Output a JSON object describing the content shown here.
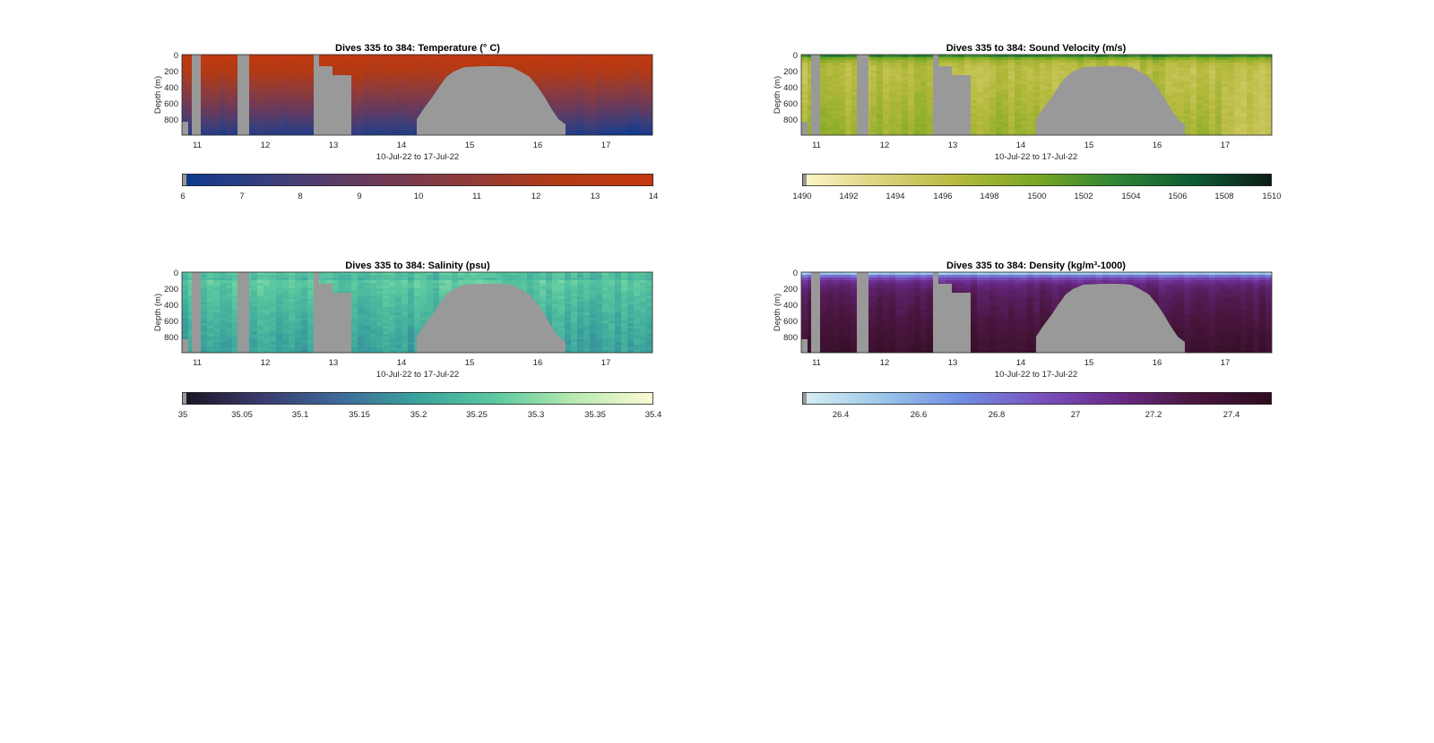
{
  "chart_data": [
    {
      "type": "heatmap",
      "title": "Dives 335 to 384: Temperature (° C)",
      "xlabel": "10-Jul-22 to 17-Jul-22",
      "ylabel": "Depth (m)",
      "x_ticks": [
        "11",
        "12",
        "13",
        "14",
        "15",
        "16",
        "17"
      ],
      "y_ticks": [
        "0",
        "200",
        "400",
        "600",
        "800"
      ],
      "x_range_days": [
        10.8,
        17.7
      ],
      "depth_range_m": [
        0,
        1000
      ],
      "colorbar": {
        "ticks": [
          "6",
          "7",
          "8",
          "9",
          "10",
          "11",
          "12",
          "13",
          "14"
        ],
        "min": 6,
        "max": 14,
        "colors": [
          "#0c3a8e",
          "#3d3e7a",
          "#6b3a5a",
          "#8f3b3a",
          "#b23a14",
          "#c43810"
        ]
      },
      "surface_value": 13.5,
      "deep_value": 6.8,
      "missing_color": "#999999"
    },
    {
      "type": "heatmap",
      "title": "Dives 335 to 384: Sound Velocity (m/s)",
      "xlabel": "10-Jul-22 to 17-Jul-22",
      "ylabel": "Depth (m)",
      "x_ticks": [
        "11",
        "12",
        "13",
        "14",
        "15",
        "16",
        "17"
      ],
      "y_ticks": [
        "0",
        "200",
        "400",
        "600",
        "800"
      ],
      "x_range_days": [
        10.8,
        17.7
      ],
      "depth_range_m": [
        0,
        1000
      ],
      "colorbar": {
        "ticks": [
          "1490",
          "1492",
          "1494",
          "1496",
          "1498",
          "1500",
          "1502",
          "1504",
          "1506",
          "1508",
          "1510"
        ],
        "min": 1490,
        "max": 1510,
        "colors": [
          "#fcf6c8",
          "#ddd27c",
          "#b4b93c",
          "#78a722",
          "#2f8534",
          "#0d5a34",
          "#0d1c16"
        ]
      },
      "surface_value": 1503.5,
      "deep_value": 1495.5,
      "missing_color": "#999999"
    },
    {
      "type": "heatmap",
      "title": "Dives 335 to 384: Salinity (psu)",
      "xlabel": "10-Jul-22 to 17-Jul-22",
      "ylabel": "Depth (m)",
      "x_ticks": [
        "11",
        "12",
        "13",
        "14",
        "15",
        "16",
        "17"
      ],
      "y_ticks": [
        "0",
        "200",
        "400",
        "600",
        "800"
      ],
      "x_range_days": [
        10.8,
        17.7
      ],
      "depth_range_m": [
        0,
        1000
      ],
      "colorbar": {
        "ticks": [
          "35",
          "35.05",
          "35.1",
          "35.15",
          "35.2",
          "35.25",
          "35.3",
          "35.35",
          "35.4"
        ],
        "min": 35,
        "max": 35.4,
        "colors": [
          "#1a1421",
          "#3a3a6e",
          "#3d6a9a",
          "#3aa39c",
          "#5cc9a0",
          "#b8eab0",
          "#fdfbd4"
        ]
      },
      "surface_value": 35.3,
      "deep_value": 35.2,
      "missing_color": "#999999"
    },
    {
      "type": "heatmap",
      "title": "Dives 335 to 384: Density (kg/m³-1000)",
      "xlabel": "10-Jul-22 to 17-Jul-22",
      "ylabel": "Depth (m)",
      "x_ticks": [
        "11",
        "12",
        "13",
        "14",
        "15",
        "16",
        "17"
      ],
      "y_ticks": [
        "0",
        "200",
        "400",
        "600",
        "800"
      ],
      "x_range_days": [
        10.8,
        17.7
      ],
      "depth_range_m": [
        0,
        1000
      ],
      "colorbar": {
        "ticks": [
          "26.4",
          "26.6",
          "26.8",
          "27",
          "27.2",
          "27.4"
        ],
        "min": 26.3,
        "max": 27.5,
        "colors": [
          "#d7f0f2",
          "#9cc8ea",
          "#6f8fe0",
          "#7a55c0",
          "#6a2a8a",
          "#4a1640",
          "#2e0b1e"
        ]
      },
      "surface_value": 26.5,
      "deep_value": 27.38,
      "missing_color": "#999999"
    }
  ]
}
